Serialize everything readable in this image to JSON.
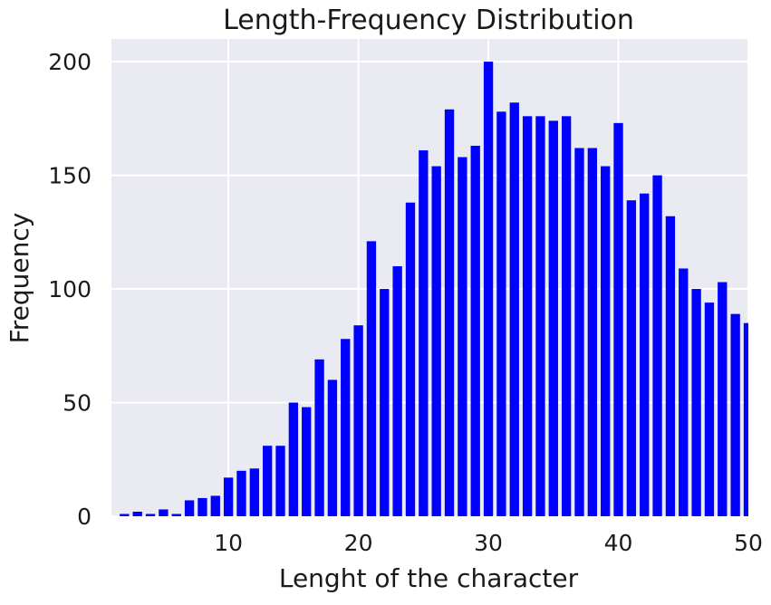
{
  "chart_data": {
    "type": "bar",
    "title": "Length-Frequency Distribution",
    "xlabel": "Lenght of the character",
    "ylabel": "Frequency",
    "x": [
      1,
      2,
      3,
      4,
      5,
      6,
      7,
      8,
      9,
      10,
      11,
      12,
      13,
      14,
      15,
      16,
      17,
      18,
      19,
      20,
      21,
      22,
      23,
      24,
      25,
      26,
      27,
      28,
      29,
      30,
      31,
      32,
      33,
      34,
      35,
      36,
      37,
      38,
      39,
      40,
      41,
      42,
      43,
      44,
      45,
      46,
      47,
      48,
      49,
      50
    ],
    "values": [
      0,
      1,
      2,
      1,
      3,
      1,
      7,
      8,
      9,
      17,
      20,
      21,
      31,
      31,
      50,
      48,
      69,
      60,
      78,
      84,
      121,
      100,
      110,
      138,
      161,
      154,
      179,
      158,
      163,
      200,
      178,
      182,
      176,
      176,
      174,
      176,
      162,
      162,
      154,
      173,
      139,
      142,
      150,
      132,
      109,
      100,
      94,
      103,
      89,
      85
    ],
    "xlim": [
      1,
      50
    ],
    "ylim": [
      0,
      210
    ],
    "x_ticks": [
      10,
      20,
      30,
      40,
      50
    ],
    "y_ticks": [
      0,
      50,
      100,
      150,
      200
    ],
    "x_tick_labels": [
      "10",
      "20",
      "30",
      "40",
      "50"
    ],
    "y_tick_labels": [
      "0",
      "50",
      "100",
      "150",
      "200"
    ],
    "bar_color": "#0000ff",
    "background_color": "#eaeaf2",
    "grid": true,
    "grid_color": "#ffffff",
    "legend": false
  }
}
